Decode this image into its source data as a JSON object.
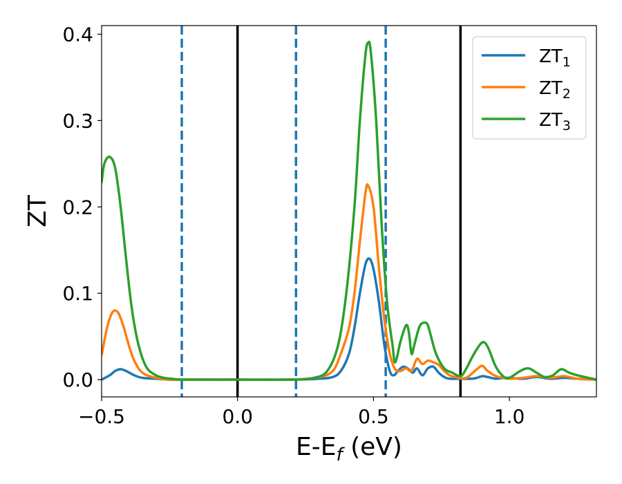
{
  "chart_data": {
    "type": "line",
    "title": "",
    "xlabel": {
      "main": "E-E",
      "sub": "f",
      "suffix": " (eV)"
    },
    "ylabel": "ZT",
    "xlim": [
      -0.5,
      1.32
    ],
    "ylim": [
      -0.02,
      0.41
    ],
    "x_ticks": [
      {
        "value": -0.5,
        "label": "−0.5"
      },
      {
        "value": 0.0,
        "label": "0.0"
      },
      {
        "value": 0.5,
        "label": "0.5"
      },
      {
        "value": 1.0,
        "label": "1.0"
      }
    ],
    "y_ticks": [
      {
        "value": 0.0,
        "label": "0.0"
      },
      {
        "value": 0.1,
        "label": "0.1"
      },
      {
        "value": 0.2,
        "label": "0.2"
      },
      {
        "value": 0.3,
        "label": "0.3"
      },
      {
        "value": 0.4,
        "label": "0.4"
      }
    ],
    "grid": false,
    "legend_position": "top-right",
    "vertical_lines": [
      {
        "x": -0.205,
        "style": "dashed",
        "color": "#1f77b4"
      },
      {
        "x": 0.0,
        "style": "solid",
        "color": "#000000"
      },
      {
        "x": 0.215,
        "style": "dashed",
        "color": "#1f77b4"
      },
      {
        "x": 0.545,
        "style": "dashed",
        "color": "#1f77b4"
      },
      {
        "x": 0.82,
        "style": "solid",
        "color": "#000000"
      }
    ],
    "series": [
      {
        "name": "ZT",
        "sub": "1",
        "color": "#1f77b4",
        "x": [
          -0.5,
          -0.47,
          -0.45,
          -0.43,
          -0.41,
          -0.38,
          -0.35,
          -0.3,
          -0.25,
          -0.2,
          0.0,
          0.2,
          0.3,
          0.35,
          0.38,
          0.41,
          0.43,
          0.45,
          0.47,
          0.485,
          0.5,
          0.52,
          0.54,
          0.56,
          0.575,
          0.59,
          0.61,
          0.63,
          0.645,
          0.66,
          0.68,
          0.7,
          0.72,
          0.74,
          0.76,
          0.78,
          0.82,
          0.86,
          0.88,
          0.9,
          0.92,
          0.95,
          0.98,
          1.0,
          1.05,
          1.1,
          1.15,
          1.2,
          1.25,
          1.32
        ],
        "y": [
          0.0,
          0.005,
          0.01,
          0.012,
          0.01,
          0.005,
          0.002,
          0.001,
          0.0,
          0.0,
          0.0,
          0.0,
          0.001,
          0.003,
          0.01,
          0.03,
          0.06,
          0.1,
          0.133,
          0.14,
          0.128,
          0.09,
          0.04,
          0.01,
          0.005,
          0.01,
          0.015,
          0.012,
          0.008,
          0.013,
          0.005,
          0.013,
          0.015,
          0.008,
          0.003,
          0.001,
          0.001,
          0.001,
          0.002,
          0.004,
          0.003,
          0.001,
          0.002,
          0.002,
          0.001,
          0.003,
          0.001,
          0.002,
          0.001,
          0.0
        ]
      },
      {
        "name": "ZT",
        "sub": "2",
        "color": "#ff7f0e",
        "x": [
          -0.5,
          -0.48,
          -0.46,
          -0.44,
          -0.42,
          -0.4,
          -0.38,
          -0.35,
          -0.3,
          -0.25,
          -0.2,
          0.0,
          0.2,
          0.3,
          0.35,
          0.38,
          0.41,
          0.43,
          0.45,
          0.47,
          0.48,
          0.5,
          0.52,
          0.54,
          0.56,
          0.58,
          0.6,
          0.62,
          0.64,
          0.66,
          0.68,
          0.7,
          0.72,
          0.74,
          0.76,
          0.78,
          0.8,
          0.84,
          0.88,
          0.9,
          0.92,
          0.95,
          0.98,
          1.0,
          1.05,
          1.1,
          1.15,
          1.2,
          1.25,
          1.32
        ],
        "y": [
          0.028,
          0.06,
          0.078,
          0.078,
          0.062,
          0.04,
          0.022,
          0.008,
          0.002,
          0.0,
          0.0,
          0.0,
          0.0,
          0.003,
          0.01,
          0.03,
          0.06,
          0.1,
          0.16,
          0.215,
          0.225,
          0.2,
          0.13,
          0.07,
          0.03,
          0.012,
          0.01,
          0.013,
          0.01,
          0.024,
          0.018,
          0.022,
          0.02,
          0.017,
          0.01,
          0.005,
          0.003,
          0.002,
          0.012,
          0.016,
          0.01,
          0.004,
          0.002,
          0.001,
          0.002,
          0.004,
          0.002,
          0.004,
          0.001,
          0.0
        ]
      },
      {
        "name": "ZT",
        "sub": "3",
        "color": "#2ca02c",
        "x": [
          -0.5,
          -0.49,
          -0.47,
          -0.45,
          -0.43,
          -0.41,
          -0.39,
          -0.37,
          -0.35,
          -0.33,
          -0.3,
          -0.27,
          -0.24,
          -0.2,
          0.0,
          0.2,
          0.28,
          0.33,
          0.37,
          0.4,
          0.43,
          0.45,
          0.47,
          0.48,
          0.49,
          0.51,
          0.53,
          0.55,
          0.57,
          0.58,
          0.6,
          0.62,
          0.63,
          0.64,
          0.65,
          0.67,
          0.69,
          0.7,
          0.71,
          0.73,
          0.76,
          0.79,
          0.82,
          0.84,
          0.87,
          0.9,
          0.92,
          0.95,
          0.98,
          1.0,
          1.04,
          1.07,
          1.1,
          1.13,
          1.16,
          1.19,
          1.22,
          1.25,
          1.32
        ],
        "y": [
          0.228,
          0.25,
          0.258,
          0.245,
          0.2,
          0.14,
          0.085,
          0.048,
          0.025,
          0.012,
          0.005,
          0.002,
          0.001,
          0.0,
          0.0,
          0.0,
          0.002,
          0.01,
          0.04,
          0.1,
          0.2,
          0.3,
          0.375,
          0.39,
          0.38,
          0.3,
          0.18,
          0.09,
          0.04,
          0.02,
          0.045,
          0.063,
          0.055,
          0.03,
          0.04,
          0.062,
          0.066,
          0.063,
          0.052,
          0.03,
          0.013,
          0.008,
          0.004,
          0.012,
          0.03,
          0.043,
          0.038,
          0.015,
          0.003,
          0.002,
          0.01,
          0.013,
          0.008,
          0.003,
          0.005,
          0.012,
          0.008,
          0.005,
          0.0
        ]
      }
    ]
  }
}
